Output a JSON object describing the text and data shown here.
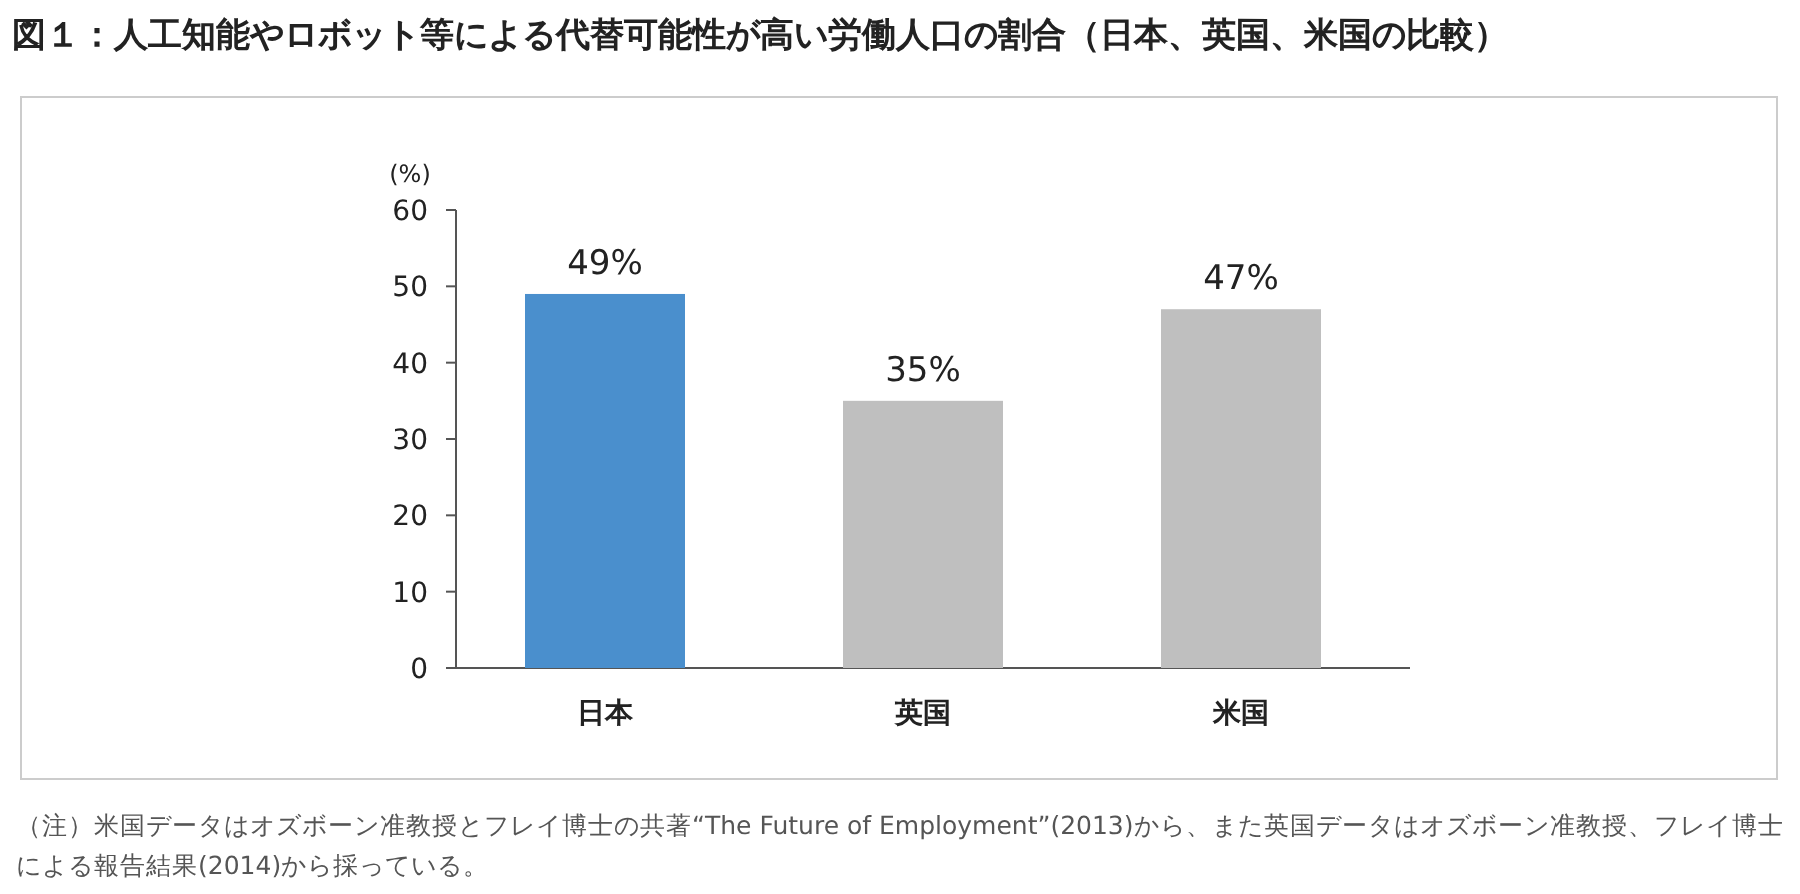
{
  "chart_data": {
    "type": "bar",
    "title": "図１：人工知能やロボット等による代替可能性が高い労働人口の割合（日本、英国、米国の比較）",
    "ylabel": "(%)",
    "categories": [
      "日本",
      "英国",
      "米国"
    ],
    "values": [
      49,
      35,
      47
    ],
    "colors": [
      "#4a8fcd",
      "#bfbfbf",
      "#bfbfbf"
    ],
    "value_labels": [
      "49%",
      "35%",
      "47%"
    ],
    "ylim": [
      0,
      60
    ],
    "yticks": [
      0,
      10,
      20,
      30,
      40,
      50,
      60
    ],
    "annotations": [
      "（注）米国データはオズボーン准教授とフレイ博士の共著“The Future of Employment”(2013)から、また英国データはオズボーン准教授、フレイ博士による報告結果(2014)から採っている。"
    ]
  }
}
